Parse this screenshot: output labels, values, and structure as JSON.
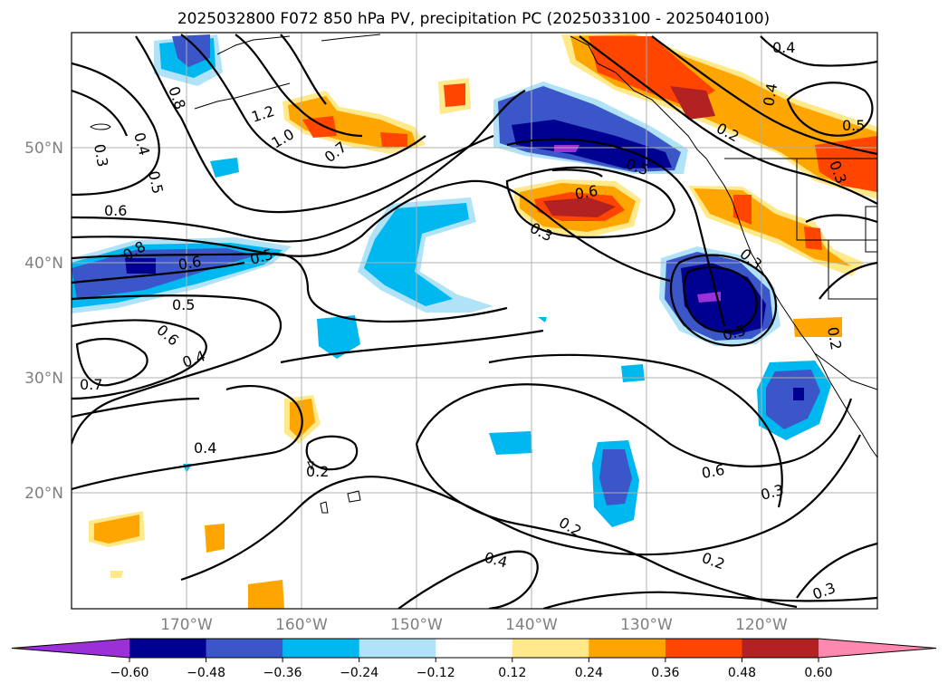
{
  "title": "2025032800 F072 850 hPa PV, precipitation PC (2025033100 - 2025040100)",
  "lat_labels": [
    "50°N",
    "40°N",
    "30°N",
    "20°N"
  ],
  "lon_labels": [
    "170°W",
    "160°W",
    "150°W",
    "140°W",
    "130°W",
    "120°W"
  ],
  "colorbar": {
    "tick_labels": [
      "−0.60",
      "−0.48",
      "−0.36",
      "−0.24",
      "−0.12",
      "0.12",
      "0.24",
      "0.36",
      "0.48",
      "0.60"
    ],
    "colors": [
      "#9b30d9",
      "#000090",
      "#3a56c8",
      "#00b8f0",
      "#b0e2f8",
      "#ffffff",
      "#ffe98a",
      "#ffa500",
      "#ff4500",
      "#b22222",
      "#ff88b0"
    ]
  },
  "contour_labels": [
    "0.4",
    "0.5",
    "0.2",
    "0.8",
    "1.2",
    "1.0",
    "0.7",
    "0.3",
    "0.4",
    "0.5",
    "0.6",
    "0.8",
    "0.6",
    "0.5",
    "0.5",
    "0.6",
    "0.4",
    "0.7",
    "0.6",
    "0.3",
    "0.4",
    "0.5",
    "0.2",
    "0.3",
    "0.5",
    "0.6",
    "0.3",
    "0.2",
    "0.4",
    "0.2",
    "0.3",
    "0.4",
    "0.2",
    "0.3"
  ]
}
